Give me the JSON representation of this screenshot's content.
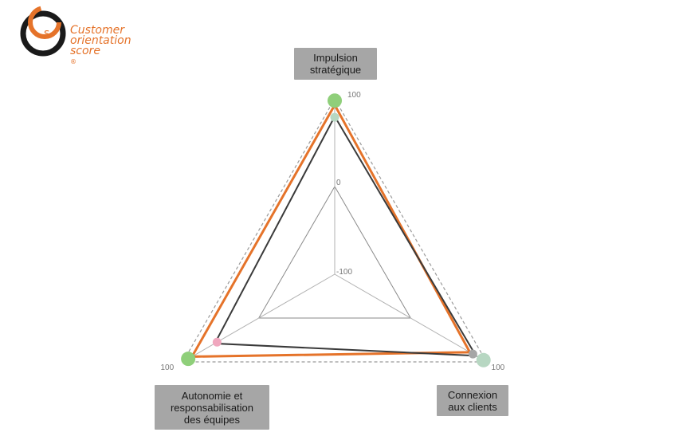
{
  "logo": {
    "lines": [
      "Customer",
      "orientation",
      "score"
    ],
    "registered": "®",
    "accent": "#e5732a",
    "ring": "#1a1a1a"
  },
  "chart_data": {
    "type": "radar",
    "axes": [
      {
        "key": "top",
        "label": "Impulsion\nstratégique"
      },
      {
        "key": "right",
        "label": "Connexion\naux clients"
      },
      {
        "key": "left",
        "label": "Autonomie et\nresponsabilisation\ndes équipes"
      }
    ],
    "scale": {
      "min": -100,
      "mid": 0,
      "max": 100
    },
    "tick_labels": {
      "top_max": "100",
      "mid": "0",
      "min": "-100",
      "left_max": "100",
      "right_max": "100"
    },
    "series": [
      {
        "color": "#e5732a",
        "values": {
          "top": 93,
          "right": 78,
          "left": 88
        }
      },
      {
        "color": "#3a3a3a",
        "values": {
          "top": 80,
          "right": 86,
          "left": 58
        }
      }
    ],
    "markers": [
      {
        "axis": "top",
        "value": 98,
        "color": "#8fcf7a",
        "size": "large"
      },
      {
        "axis": "top",
        "value": 79,
        "color": "#b7d7c2",
        "size": "small"
      },
      {
        "axis": "right",
        "value": 96,
        "color": "#b7d7c2",
        "size": "large"
      },
      {
        "axis": "right",
        "value": 82,
        "color": "#a6a6a6",
        "size": "small"
      },
      {
        "axis": "left",
        "value": 93,
        "color": "#8fcf7a",
        "size": "large"
      },
      {
        "axis": "left",
        "value": 55,
        "color": "#f0a7be",
        "size": "small"
      }
    ],
    "grid_color": "#8a8a8a",
    "outer_dashed": true
  }
}
